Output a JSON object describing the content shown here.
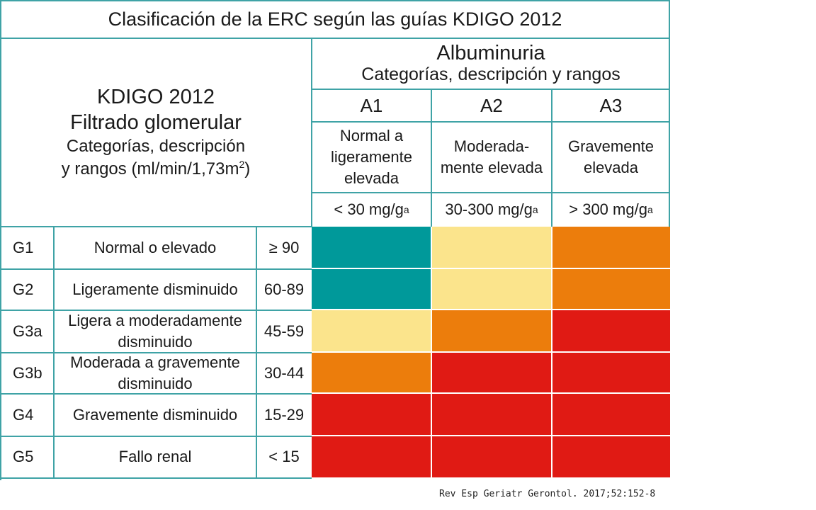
{
  "title": "Clasificación de la ERC según las guías KDIGO 2012",
  "left_header": {
    "line1": "KDIGO 2012",
    "line2": "Filtrado glomerular",
    "line3": "Categorías, descripción",
    "line4_prefix": "y rangos (ml/min/1,73m",
    "line4_sup": "2",
    "line4_suffix": ")"
  },
  "albuminuria": {
    "title": "Albuminuria",
    "subtitle": "Categorías, descripción y rangos",
    "columns": [
      {
        "code": "A1",
        "desc1": "Normal a",
        "desc2": "ligeramente",
        "desc3": "elevada",
        "range": "< 30 mg/g",
        "sup": "a"
      },
      {
        "code": "A2",
        "desc1": "Moderada-",
        "desc2": "mente elevada",
        "desc3": "",
        "range": "30-300 mg/g",
        "sup": "a"
      },
      {
        "code": "A3",
        "desc1": "Gravemente",
        "desc2": "elevada",
        "desc3": "",
        "range": "> 300 mg/g",
        "sup": "a"
      }
    ]
  },
  "rows": [
    {
      "code": "G1",
      "desc1": "Normal o elevado",
      "desc2": "",
      "range": "≥ 90",
      "risk": [
        "green",
        "yellow",
        "orange"
      ]
    },
    {
      "code": "G2",
      "desc1": "Ligeramente disminuido",
      "desc2": "",
      "range": "60-89",
      "risk": [
        "green",
        "yellow",
        "orange"
      ]
    },
    {
      "code": "G3a",
      "desc1": "Ligera a moderadamente",
      "desc2": "disminuido",
      "range": "45-59",
      "risk": [
        "yellow",
        "orange",
        "red"
      ]
    },
    {
      "code": "G3b",
      "desc1": "Moderada a gravemente",
      "desc2": "disminuido",
      "range": "30-44",
      "risk": [
        "orange",
        "red",
        "red"
      ]
    },
    {
      "code": "G4",
      "desc1": "Gravemente disminuido",
      "desc2": "",
      "range": "15-29",
      "risk": [
        "red",
        "red",
        "red"
      ]
    },
    {
      "code": "G5",
      "desc1": "Fallo renal",
      "desc2": "",
      "range": "< 15",
      "risk": [
        "red",
        "red",
        "red"
      ]
    }
  ],
  "colors": {
    "green": "#00999a",
    "yellow": "#fbe48c",
    "orange": "#ec7d0c",
    "red": "#e01a14",
    "grid": "#3fa3a6"
  },
  "source": "Rev Esp Geriatr Gerontol. 2017;52:152-8"
}
